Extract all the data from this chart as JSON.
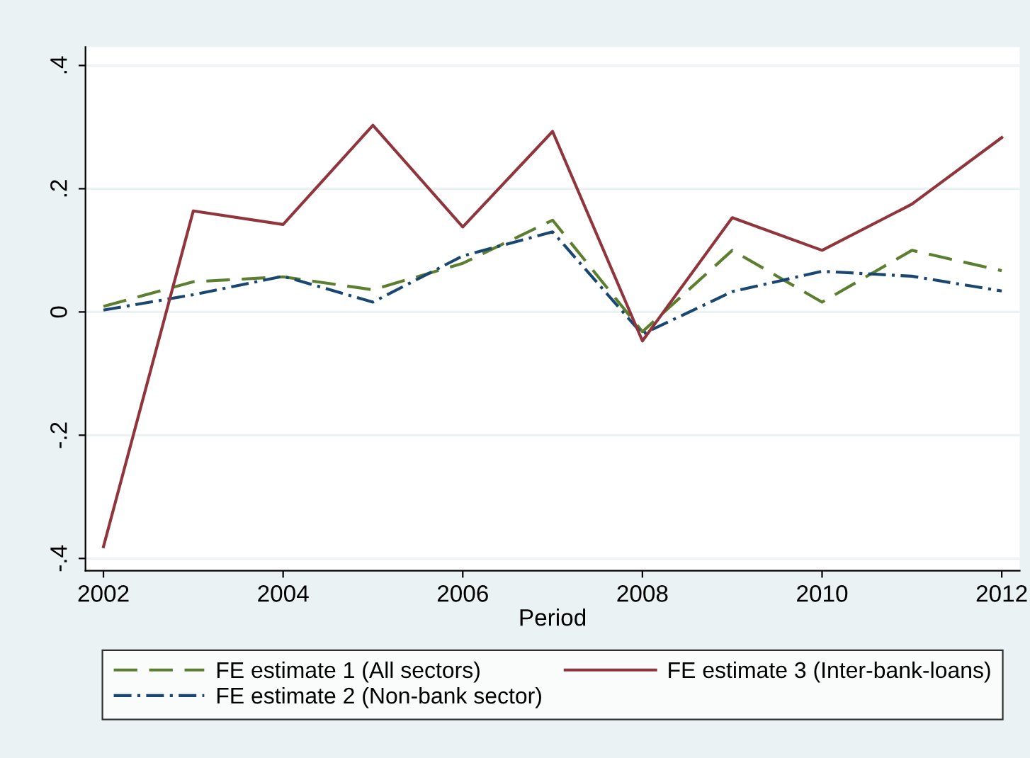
{
  "chart_data": {
    "type": "line",
    "xlabel": "Period",
    "x": [
      2002,
      2003,
      2004,
      2005,
      2006,
      2007,
      2008,
      2009,
      2010,
      2011,
      2012
    ],
    "series": [
      {
        "name": "FE estimate 1 (All sectors)",
        "color": "#5b7f2f",
        "line_style": "dashed",
        "values": [
          0.009,
          0.049,
          0.057,
          0.036,
          0.079,
          0.149,
          -0.032,
          0.1,
          0.016,
          0.1,
          0.067
        ]
      },
      {
        "name": "FE estimate 2 (Non-bank sector)",
        "color": "#1a476f",
        "line_style": "dashdot",
        "values": [
          0.003,
          0.028,
          0.058,
          0.016,
          0.091,
          0.13,
          -0.036,
          0.033,
          0.066,
          0.058,
          0.034
        ]
      },
      {
        "name": "FE estimate 3 (Inter-bank-loans)",
        "color": "#90353b",
        "line_style": "solid",
        "values": [
          -0.381,
          0.164,
          0.142,
          0.303,
          0.138,
          0.293,
          -0.047,
          0.153,
          0.1,
          0.175,
          0.283
        ]
      }
    ],
    "xlim": [
      2001.8,
      2012.2
    ],
    "ylim": [
      -0.42,
      0.43
    ],
    "xticks": [
      2002,
      2004,
      2006,
      2008,
      2010,
      2012
    ],
    "yticks": [
      {
        "value": -0.4,
        "label": "-.4"
      },
      {
        "value": -0.2,
        "label": "-.2"
      },
      {
        "value": 0,
        "label": "0"
      },
      {
        "value": 0.2,
        "label": ".2"
      },
      {
        "value": 0.4,
        "label": ".4"
      }
    ],
    "grid": "y",
    "legend": "bottom",
    "marker": "none"
  }
}
